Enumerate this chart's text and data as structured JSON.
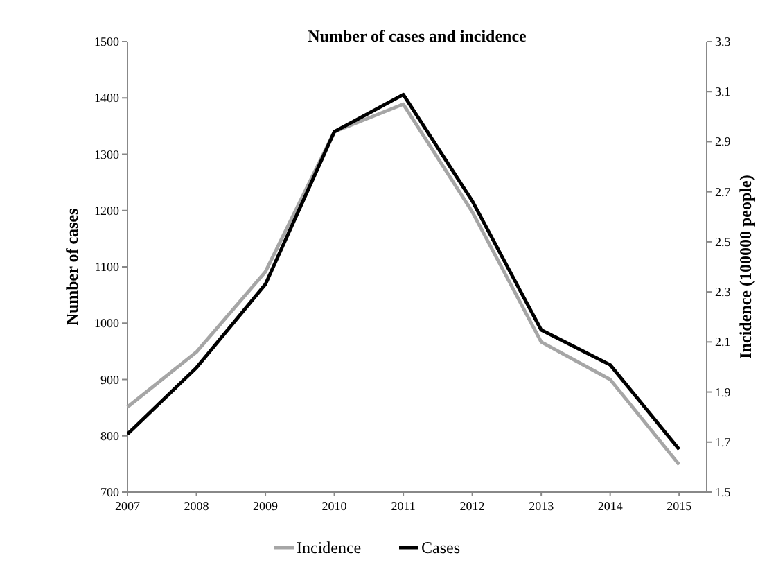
{
  "chart_data": {
    "type": "line",
    "title": "Number of cases and incidence",
    "ylabel": "Number of cases",
    "y2label": "Incidence (100000 people)",
    "x": [
      2007,
      2008,
      2009,
      2010,
      2011,
      2012,
      2013,
      2014,
      2015
    ],
    "xlim": [
      2007,
      2015.4
    ],
    "xticks": [
      2007,
      2008,
      2009,
      2010,
      2011,
      2012,
      2013,
      2014,
      2015
    ],
    "ylim": [
      700,
      1500
    ],
    "yticks": [
      700,
      800,
      900,
      1000,
      1100,
      1200,
      1300,
      1400,
      1500
    ],
    "y2lim": [
      1.5,
      3.3
    ],
    "y2ticks": [
      1.5,
      1.7,
      1.9,
      2.1,
      2.3,
      2.5,
      2.7,
      2.9,
      3.1,
      3.3
    ],
    "series": [
      {
        "name": "Incidence",
        "color": "#a6a6a6",
        "axis": "y2",
        "values": [
          1.84,
          2.06,
          2.38,
          2.94,
          3.05,
          2.62,
          2.1,
          1.95,
          1.61
        ]
      },
      {
        "name": "Cases",
        "color": "#000000",
        "axis": "y",
        "values": [
          803,
          921,
          1069,
          1340,
          1406,
          1217,
          988,
          926,
          776
        ]
      }
    ],
    "legend": "bottom",
    "grid": false,
    "marker": "none",
    "line_style": "solid"
  }
}
